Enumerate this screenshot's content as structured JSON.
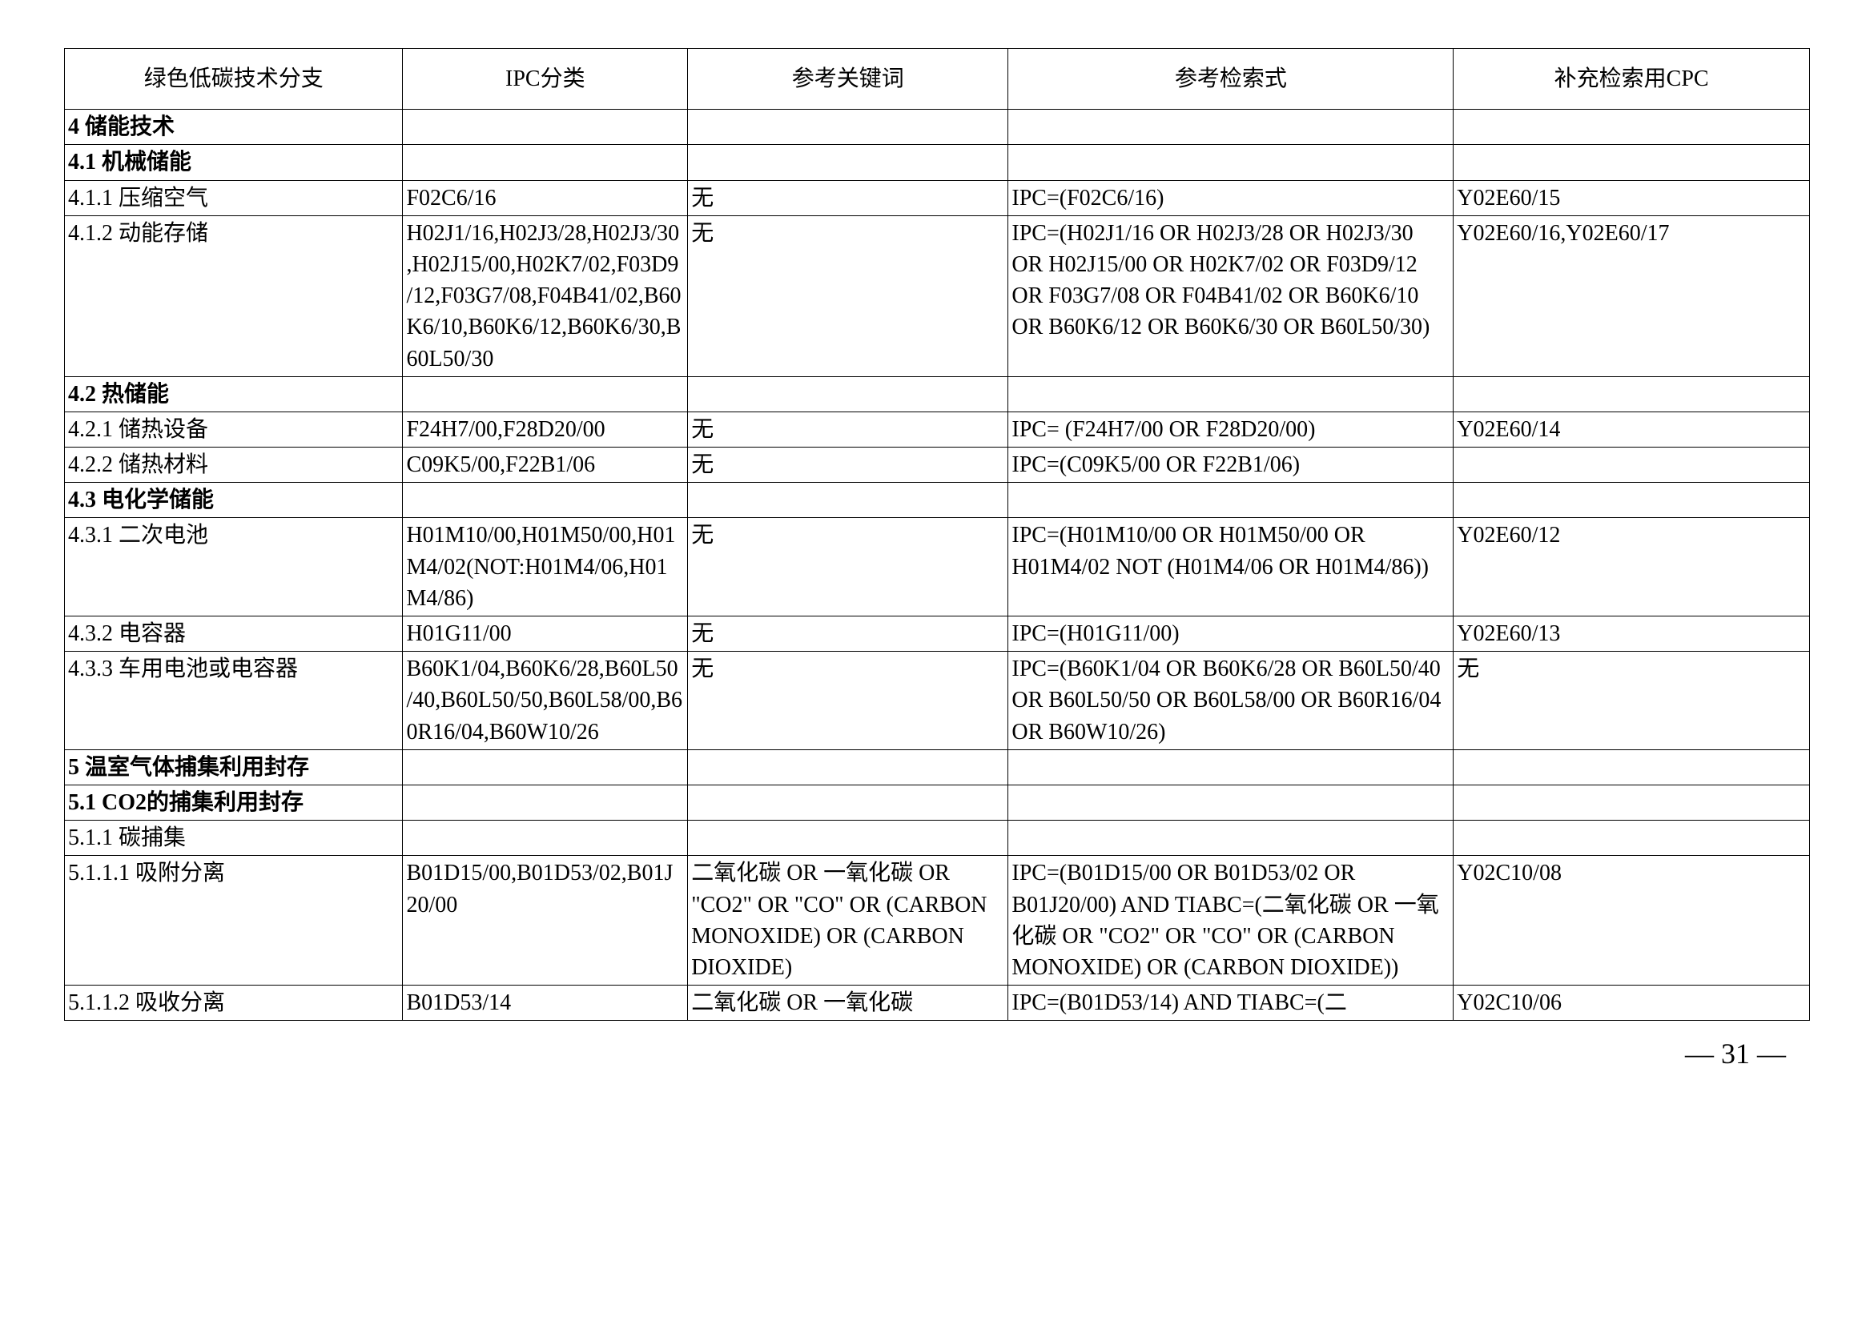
{
  "table": {
    "headers": [
      "绿色低碳技术分支",
      "IPC分类",
      "参考关键词",
      "参考检索式",
      "补充检索用CPC"
    ],
    "rows": [
      {
        "type": "section",
        "cells": [
          "4 储能技术",
          "",
          "",
          "",
          ""
        ]
      },
      {
        "type": "section",
        "cells": [
          "4.1 机械储能",
          "",
          "",
          "",
          ""
        ]
      },
      {
        "type": "data",
        "cells": [
          "4.1.1 压缩空气",
          "F02C6/16",
          "无",
          "IPC=(F02C6/16)",
          "Y02E60/15"
        ]
      },
      {
        "type": "data",
        "cells": [
          "4.1.2 动能存储",
          "H02J1/16,H02J3/28,H02J3/30,H02J15/00,H02K7/02,F03D9/12,F03G7/08,F04B41/02,B60K6/10,B60K6/12,B60K6/30,B60L50/30",
          "无",
          "IPC=(H02J1/16 OR H02J3/28 OR H02J3/30 OR H02J15/00 OR H02K7/02 OR F03D9/12 OR F03G7/08 OR F04B41/02 OR B60K6/10 OR B60K6/12 OR B60K6/30 OR B60L50/30)",
          "Y02E60/16,Y02E60/17"
        ]
      },
      {
        "type": "section",
        "cells": [
          "4.2 热储能",
          "",
          "",
          "",
          ""
        ]
      },
      {
        "type": "data",
        "cells": [
          "4.2.1 储热设备",
          "F24H7/00,F28D20/00",
          "无",
          "IPC= (F24H7/00 OR F28D20/00)",
          "Y02E60/14"
        ]
      },
      {
        "type": "data",
        "cells": [
          "4.2.2 储热材料",
          "C09K5/00,F22B1/06",
          "无",
          "IPC=(C09K5/00 OR F22B1/06)",
          ""
        ]
      },
      {
        "type": "section",
        "cells": [
          "4.3 电化学储能",
          "",
          "",
          "",
          ""
        ]
      },
      {
        "type": "data",
        "cells": [
          "4.3.1 二次电池",
          "H01M10/00,H01M50/00,H01M4/02(NOT:H01M4/06,H01M4/86)",
          "无",
          "IPC=(H01M10/00 OR H01M50/00 OR H01M4/02 NOT (H01M4/06 OR H01M4/86))",
          "Y02E60/12"
        ]
      },
      {
        "type": "data",
        "cells": [
          "4.3.2 电容器",
          "H01G11/00",
          "无",
          "IPC=(H01G11/00)",
          "Y02E60/13"
        ]
      },
      {
        "type": "data",
        "cells": [
          "4.3.3 车用电池或电容器",
          "B60K1/04,B60K6/28,B60L50/40,B60L50/50,B60L58/00,B60R16/04,B60W10/26",
          "无",
          "IPC=(B60K1/04 OR B60K6/28 OR B60L50/40 OR B60L50/50 OR B60L58/00 OR B60R16/04 OR B60W10/26)",
          "无"
        ]
      },
      {
        "type": "section",
        "cells": [
          "5 温室气体捕集利用封存",
          "",
          "",
          "",
          ""
        ]
      },
      {
        "type": "section",
        "cells": [
          "5.1 CO2的捕集利用封存",
          "",
          "",
          "",
          ""
        ]
      },
      {
        "type": "data",
        "cells": [
          "5.1.1 碳捕集",
          "",
          "",
          "",
          ""
        ]
      },
      {
        "type": "data",
        "cells": [
          "5.1.1.1 吸附分离",
          "B01D15/00,B01D53/02,B01J20/00",
          "二氧化碳 OR 一氧化碳 OR \"CO2\" OR \"CO\" OR (CARBON MONOXIDE) OR (CARBON DIOXIDE)",
          "IPC=(B01D15/00 OR B01D53/02 OR B01J20/00) AND TIABC=(二氧化碳 OR 一氧化碳 OR \"CO2\" OR \"CO\" OR (CARBON MONOXIDE) OR (CARBON DIOXIDE))",
          "Y02C10/08"
        ]
      },
      {
        "type": "data",
        "cells": [
          "5.1.1.2 吸收分离",
          "B01D53/14",
          "二氧化碳 OR 一氧化碳",
          "IPC=(B01D53/14) AND TIABC=(二",
          "Y02C10/06"
        ]
      }
    ]
  },
  "page_number": "— 31 —"
}
